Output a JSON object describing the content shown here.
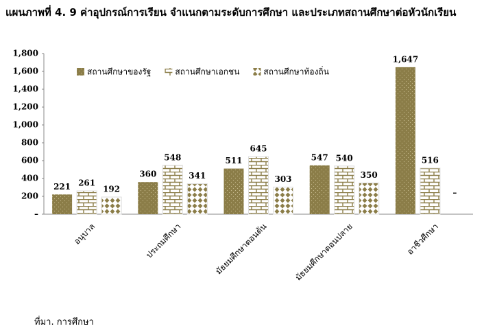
{
  "chart_data": {
    "type": "bar",
    "title": "แผนภาพที่ 4. 9 ค่าอุปกรณ์การเรียน จำแนกตามระดับการศึกษา และประเภทสถานศึกษาต่อหัวนักเรียน",
    "source": "ที่มา. การศึกษา",
    "categories": [
      "อนุบาล",
      "ประถมศึกษา",
      "มัธยมศึกษาตอนต้น",
      "มัธยมศึกษาตอนปลาย",
      "อาชีวศึกษา"
    ],
    "series": [
      {
        "name": "สถานศึกษาของรัฐ",
        "color": "#8b7d48",
        "pattern": "solid",
        "values": [
          221,
          360,
          511,
          547,
          1647
        ],
        "value_labels": [
          "221",
          "360",
          "511",
          "547",
          "1,647"
        ]
      },
      {
        "name": "สถานศึกษาเอกชน",
        "color": "#8b7d48",
        "pattern": "bricks",
        "values": [
          261,
          548,
          645,
          540,
          516
        ]
      },
      {
        "name": "สถานศึกษาท้องถิ่น",
        "color": "#8b7d48",
        "pattern": "diamonds",
        "values": [
          192,
          341,
          303,
          350,
          null
        ],
        "value_labels": [
          "192",
          "341",
          "303",
          "350",
          "–"
        ]
      }
    ],
    "ylim": [
      0,
      1800
    ],
    "yticks": [
      {
        "value": 0,
        "label": "–"
      },
      200,
      400,
      600,
      800,
      {
        "value": 1000,
        "label": "1,000"
      },
      {
        "value": 1200,
        "label": "1,200"
      },
      {
        "value": 1400,
        "label": "1,400"
      },
      {
        "value": 1600,
        "label": "1,600"
      },
      {
        "value": 1800,
        "label": "1,800"
      }
    ],
    "grid": false,
    "legend": "top-left"
  }
}
